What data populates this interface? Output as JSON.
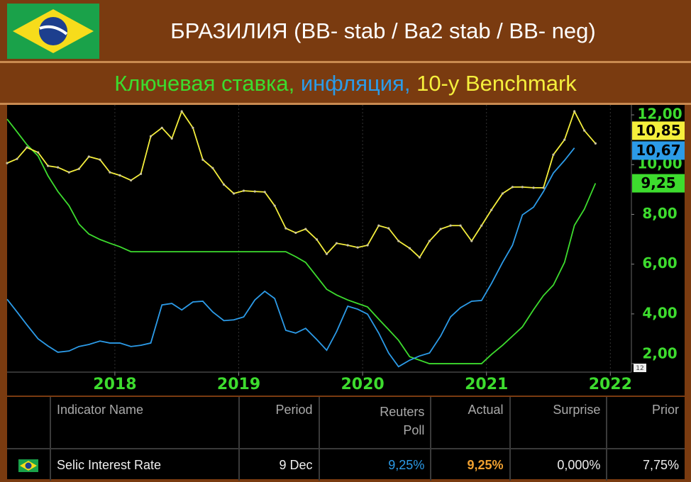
{
  "chart_data": {
    "type": "line",
    "title": "БРАЗИЛИЯ (BB- stab / Ba2 stab / BB- neg)",
    "x": [
      2017.13,
      2017.21,
      2017.29,
      2017.38,
      2017.46,
      2017.54,
      2017.63,
      2017.71,
      2017.79,
      2017.88,
      2017.96,
      2018.04,
      2018.13,
      2018.21,
      2018.29,
      2018.38,
      2018.46,
      2018.54,
      2018.63,
      2018.71,
      2018.79,
      2018.88,
      2018.96,
      2019.04,
      2019.13,
      2019.21,
      2019.29,
      2019.38,
      2019.46,
      2019.54,
      2019.63,
      2019.71,
      2019.79,
      2019.88,
      2019.96,
      2020.04,
      2020.13,
      2020.21,
      2020.29,
      2020.38,
      2020.46,
      2020.54,
      2020.63,
      2020.71,
      2020.79,
      2020.88,
      2020.96,
      2021.04,
      2021.13,
      2021.21,
      2021.29,
      2021.38,
      2021.46,
      2021.54,
      2021.63,
      2021.71,
      2021.79,
      2021.88
    ],
    "xlim": [
      2017.13,
      2022.17
    ],
    "xticks": [
      2018,
      2019,
      2020,
      2021,
      2022
    ],
    "ylim": [
      1.66,
      12.4
    ],
    "yticks": [
      {
        "value": 2,
        "label": "2,00"
      },
      {
        "value": 4,
        "label": "4,00"
      },
      {
        "value": 6,
        "label": "6,00"
      },
      {
        "value": 8,
        "label": "8,00"
      },
      {
        "value": 10,
        "label": "10,00"
      },
      {
        "value": 12,
        "label": "12,00"
      }
    ],
    "grid": "x",
    "badge": "12",
    "series": [
      {
        "name": "Ключевая ставка,",
        "color": "#3ddc2e",
        "values": [
          11.83,
          11.32,
          10.8,
          10.35,
          9.55,
          8.92,
          8.35,
          7.61,
          7.21,
          6.99,
          6.84,
          6.7,
          6.5,
          6.5,
          6.5,
          6.5,
          6.5,
          6.5,
          6.5,
          6.5,
          6.5,
          6.5,
          6.5,
          6.5,
          6.5,
          6.5,
          6.5,
          6.5,
          6.3,
          6.07,
          5.5,
          4.99,
          4.76,
          4.56,
          4.42,
          4.28,
          3.79,
          3.37,
          2.94,
          2.28,
          2.14,
          2.0,
          2.0,
          2.0,
          2.0,
          2.0,
          2.0,
          2.37,
          2.74,
          3.11,
          3.48,
          4.17,
          4.74,
          5.16,
          6.07,
          7.56,
          8.21,
          9.25
        ],
        "value_labels": [
          null,
          null,
          null,
          null,
          null,
          null,
          null,
          null,
          null,
          null,
          null,
          null,
          null,
          null,
          null,
          null,
          null,
          null,
          null,
          null,
          null,
          null,
          null,
          null,
          null,
          null,
          null,
          null,
          null,
          null,
          null,
          null,
          null,
          null,
          null,
          null,
          null,
          null,
          null,
          null,
          null,
          null,
          null,
          null,
          null,
          null,
          null,
          null,
          null,
          null,
          null,
          null,
          null,
          null,
          null,
          null,
          null,
          "9,25"
        ]
      },
      {
        "name": "инфляция,",
        "color": "#2c9be8",
        "values": [
          4.59,
          4.08,
          3.56,
          3.0,
          2.71,
          2.46,
          2.51,
          2.69,
          2.77,
          2.91,
          2.83,
          2.83,
          2.69,
          2.74,
          2.83,
          4.36,
          4.42,
          4.16,
          4.48,
          4.51,
          4.08,
          3.73,
          3.76,
          3.88,
          4.56,
          4.91,
          4.62,
          3.34,
          3.23,
          3.42,
          2.97,
          2.54,
          3.29,
          4.31,
          4.19,
          3.99,
          3.23,
          2.43,
          1.88,
          2.14,
          2.31,
          2.43,
          3.11,
          3.88,
          4.25,
          4.51,
          4.54,
          5.22,
          6.07,
          6.76,
          7.98,
          8.29,
          8.92,
          9.66,
          10.17,
          10.67,
          null,
          null
        ],
        "value_labels": [
          null,
          null,
          null,
          null,
          null,
          null,
          null,
          null,
          null,
          null,
          null,
          null,
          null,
          null,
          null,
          null,
          null,
          null,
          null,
          null,
          null,
          null,
          null,
          null,
          null,
          null,
          null,
          null,
          null,
          null,
          null,
          null,
          null,
          null,
          null,
          null,
          null,
          null,
          null,
          null,
          null,
          null,
          null,
          null,
          null,
          null,
          null,
          null,
          null,
          null,
          null,
          null,
          null,
          null,
          null,
          "10,67",
          null,
          null
        ]
      },
      {
        "name": "10-y Benchmark",
        "color": "#f5ef3c",
        "markers": true,
        "values": [
          10.06,
          10.23,
          10.69,
          10.49,
          9.95,
          9.89,
          9.69,
          9.83,
          10.32,
          10.2,
          9.69,
          9.57,
          9.37,
          9.63,
          11.14,
          11.48,
          11.05,
          12.14,
          11.48,
          10.2,
          9.86,
          9.2,
          8.84,
          8.95,
          8.92,
          8.9,
          8.35,
          7.44,
          7.26,
          7.41,
          6.99,
          6.41,
          6.84,
          6.76,
          6.67,
          6.76,
          7.55,
          7.44,
          6.93,
          6.64,
          6.27,
          6.93,
          7.41,
          7.55,
          7.55,
          6.93,
          7.55,
          8.18,
          8.84,
          9.1,
          9.1,
          9.07,
          9.07,
          10.4,
          11.0,
          12.14,
          11.37,
          10.85
        ],
        "value_labels": [
          null,
          null,
          null,
          null,
          null,
          null,
          null,
          null,
          null,
          null,
          null,
          null,
          null,
          null,
          null,
          null,
          null,
          null,
          null,
          null,
          null,
          null,
          null,
          null,
          null,
          null,
          null,
          null,
          null,
          null,
          null,
          null,
          null,
          null,
          null,
          null,
          null,
          null,
          null,
          null,
          null,
          null,
          null,
          null,
          null,
          null,
          null,
          null,
          null,
          null,
          null,
          null,
          null,
          null,
          null,
          null,
          null,
          "10,85"
        ]
      }
    ]
  },
  "table": {
    "header": [
      "Indicator Name",
      "Period",
      "Reuters Poll",
      "Actual",
      "Surprise",
      "Prior"
    ],
    "rows": [
      [
        "Selic Interest Rate",
        "9 Dec",
        "9,25%",
        "9,25%",
        "0,000%",
        "7,75%"
      ]
    ]
  }
}
